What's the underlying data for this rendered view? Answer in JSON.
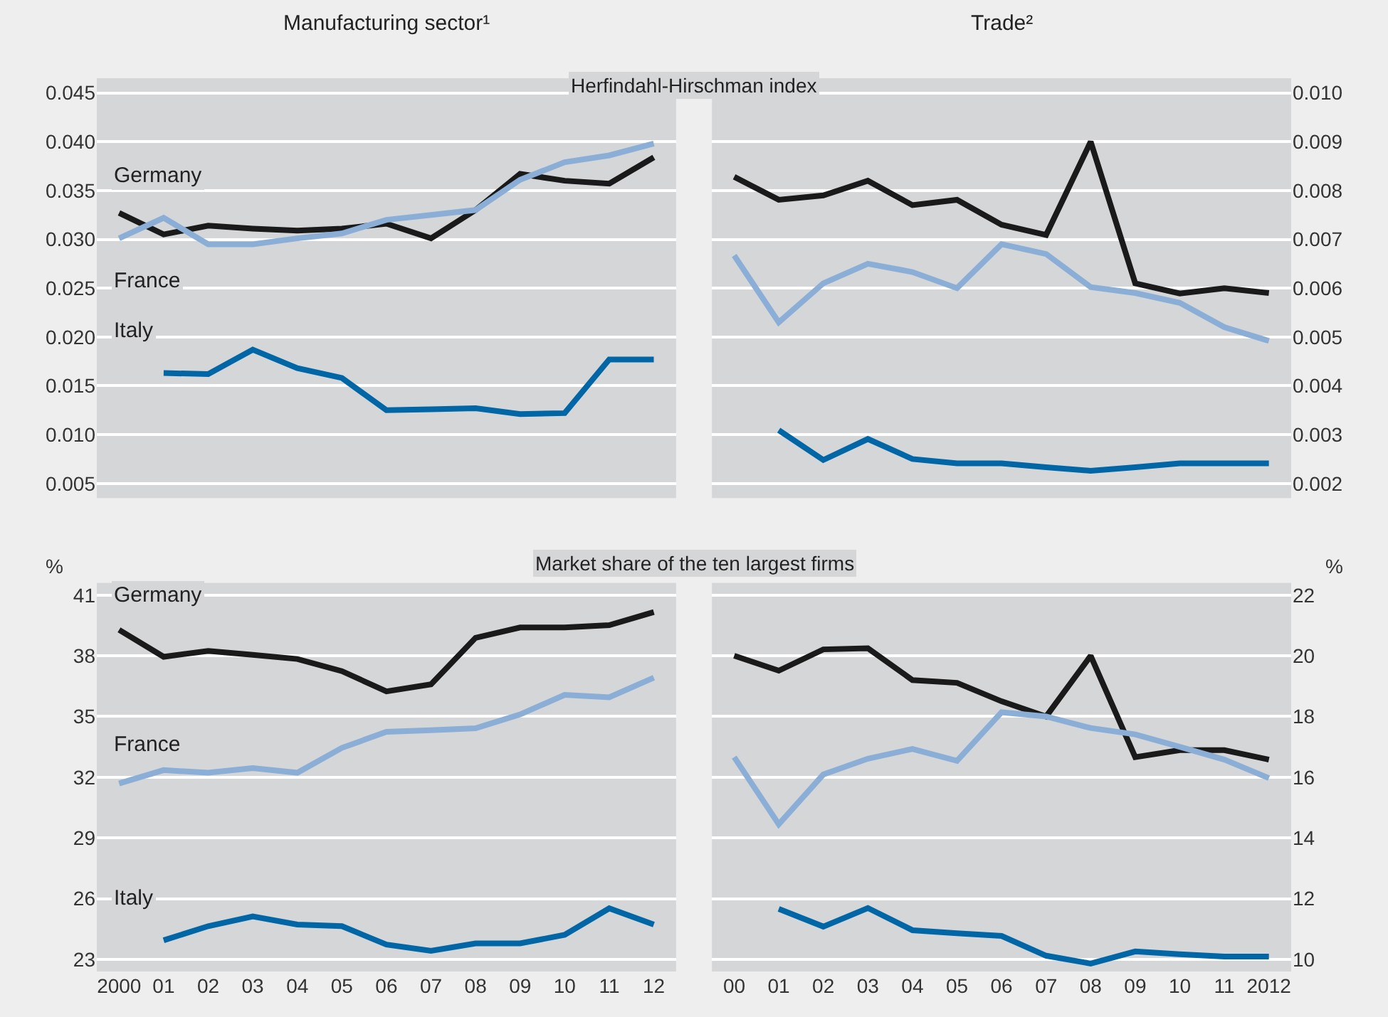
{
  "chart_data": [
    {
      "type": "line",
      "title": "Manufacturing sector¹",
      "annotations": [
        "Herfindahl-Hirschman index"
      ],
      "categories": [
        "2000",
        "01",
        "02",
        "03",
        "04",
        "05",
        "06",
        "07",
        "08",
        "09",
        "10",
        "11",
        "12"
      ],
      "tick_labels": "y",
      "grid": "y",
      "legend": false,
      "ylim": [
        0.0035,
        0.0465
      ],
      "yticks": [
        {
          "value": 0.005,
          "label": "0.005"
        },
        {
          "value": 0.01,
          "label": "0.010"
        },
        {
          "value": 0.015,
          "label": "0.015"
        },
        {
          "value": 0.02,
          "label": "0.020"
        },
        {
          "value": 0.025,
          "label": "0.025"
        },
        {
          "value": 0.03,
          "label": "0.030"
        },
        {
          "value": 0.035,
          "label": "0.035"
        },
        {
          "value": 0.04,
          "label": "0.040"
        },
        {
          "value": 0.045,
          "label": "0.045"
        }
      ],
      "series": [
        {
          "name": "Germany",
          "color": "#1a1a1a",
          "values": [
            0.0327,
            0.0305,
            0.0314,
            0.0311,
            0.0309,
            0.0311,
            0.0316,
            0.0301,
            0.033,
            0.0367,
            0.036,
            0.0357,
            0.0384
          ]
        },
        {
          "name": "France",
          "color": "#8aaed6",
          "values": [
            0.0301,
            0.0322,
            0.0295,
            0.0295,
            0.0301,
            0.0306,
            0.032,
            0.0325,
            0.033,
            0.0361,
            0.0379,
            0.0386,
            0.0398
          ]
        },
        {
          "name": "Italy",
          "color": "#0066a6",
          "values": [
            null,
            0.0163,
            0.0162,
            0.0187,
            0.0168,
            0.0158,
            0.0125,
            0.0126,
            0.0127,
            0.0121,
            0.0122,
            0.0177,
            0.0177
          ]
        }
      ]
    },
    {
      "type": "line",
      "title": "Trade²",
      "categories": [
        "00",
        "01",
        "02",
        "03",
        "04",
        "05",
        "06",
        "07",
        "08",
        "09",
        "10",
        "11",
        "2012"
      ],
      "tick_labels": "y",
      "grid": "y",
      "legend": false,
      "ylim": [
        0.0017,
        0.0103
      ],
      "yticks": [
        {
          "value": 0.002,
          "label": "0.002"
        },
        {
          "value": 0.003,
          "label": "0.003"
        },
        {
          "value": 0.004,
          "label": "0.004"
        },
        {
          "value": 0.005,
          "label": "0.005"
        },
        {
          "value": 0.006,
          "label": "0.006"
        },
        {
          "value": 0.007,
          "label": "0.007"
        },
        {
          "value": 0.008,
          "label": "0.008"
        },
        {
          "value": 0.009,
          "label": "0.009"
        },
        {
          "value": 0.01,
          "label": "0.010"
        }
      ],
      "series": [
        {
          "color": "#1a1a1a",
          "values": [
            0.00828,
            0.00781,
            0.0079,
            0.0082,
            0.0077,
            0.00781,
            0.0073,
            0.00709,
            0.009,
            0.0061,
            0.00589,
            0.006,
            0.0059
          ]
        },
        {
          "color": "#8aaed6",
          "values": [
            0.00667,
            0.0053,
            0.0061,
            0.0065,
            0.00633,
            0.006,
            0.0069,
            0.0067,
            0.00602,
            0.0059,
            0.0057,
            0.0052,
            0.00492
          ]
        },
        {
          "color": "#0066a6",
          "values": [
            null,
            0.00309,
            0.00248,
            0.00291,
            0.0025,
            0.00241,
            0.00241,
            0.00233,
            0.00226,
            0.00233,
            0.00241,
            0.00241,
            0.00241
          ]
        }
      ]
    },
    {
      "type": "line",
      "ylabel": "%",
      "annotations": [
        "Market share of the ten largest firms"
      ],
      "categories": [
        "2000",
        "01",
        "02",
        "03",
        "04",
        "05",
        "06",
        "07",
        "08",
        "09",
        "10",
        "11",
        "12"
      ],
      "grid": "y",
      "legend": false,
      "ylim": [
        22.4,
        41.6
      ],
      "yticks": [
        23,
        26,
        29,
        32,
        35,
        38,
        41
      ],
      "series": [
        {
          "name": "Germany",
          "color": "#1a1a1a",
          "values": [
            39.28,
            37.95,
            38.24,
            38.05,
            37.84,
            37.24,
            36.24,
            36.59,
            38.89,
            39.4,
            39.4,
            39.51,
            40.16
          ]
        },
        {
          "name": "France",
          "color": "#8aaed6",
          "values": [
            31.69,
            32.35,
            32.22,
            32.45,
            32.22,
            33.45,
            34.24,
            34.32,
            34.42,
            35.1,
            36.07,
            35.95,
            36.92
          ]
        },
        {
          "name": "Italy",
          "color": "#0066a6",
          "values": [
            null,
            23.94,
            24.64,
            25.12,
            24.72,
            24.64,
            23.73,
            23.42,
            23.79,
            23.79,
            24.21,
            25.52,
            24.72
          ]
        }
      ]
    },
    {
      "type": "line",
      "ylabel": "%",
      "categories": [
        "00",
        "01",
        "02",
        "03",
        "04",
        "05",
        "06",
        "07",
        "08",
        "09",
        "10",
        "11",
        "2012"
      ],
      "grid": "y",
      "legend": false,
      "ylim": [
        9.6,
        22.4
      ],
      "yticks": [
        10,
        12,
        14,
        16,
        18,
        20,
        22
      ],
      "series": [
        {
          "color": "#1a1a1a",
          "values": [
            20.0,
            19.51,
            20.21,
            20.25,
            19.2,
            19.11,
            18.5,
            18.0,
            20.0,
            16.66,
            16.89,
            16.89,
            16.58
          ]
        },
        {
          "color": "#8aaed6",
          "values": [
            16.66,
            14.45,
            16.09,
            16.61,
            16.93,
            16.54,
            18.14,
            18.0,
            17.62,
            17.41,
            17.0,
            16.58,
            15.97
          ]
        },
        {
          "color": "#0066a6",
          "values": [
            null,
            11.66,
            11.08,
            11.69,
            10.96,
            10.86,
            10.77,
            10.12,
            9.86,
            10.26,
            10.17,
            10.09,
            10.09
          ]
        }
      ]
    }
  ]
}
